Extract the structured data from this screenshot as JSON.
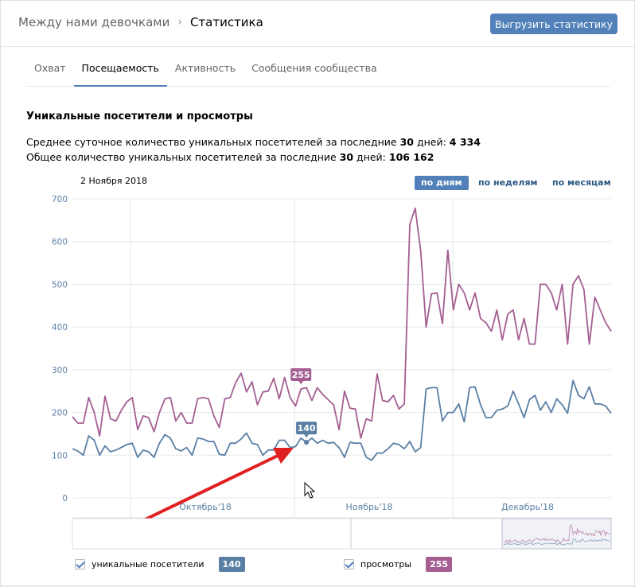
{
  "header": {
    "group_name": "Между нами девочками",
    "current_page": "Статистика",
    "export_label": "Выгрузить статистику"
  },
  "tabs": [
    {
      "label": "Охват"
    },
    {
      "label": "Посещаемость"
    },
    {
      "label": "Активность"
    },
    {
      "label": "Сообщения сообщества"
    }
  ],
  "section": {
    "title": "Уникальные посетители и просмотры",
    "line1_prefix": "Среднее суточное количество уникальных посетителей за последние ",
    "line1_days": "30",
    "line1_mid": " дней: ",
    "line1_value": "4 334",
    "line2_prefix": "Общее количество уникальных посетителей за последние ",
    "line2_days": "30",
    "line2_mid": " дней: ",
    "line2_value": "106 162"
  },
  "chart_controls": {
    "date_label": "2 Ноября 2018",
    "periods": [
      "по дням",
      "по неделям",
      "по месяцам"
    ],
    "active_period": "по дням"
  },
  "colors": {
    "visitors": "#5a7fa5",
    "views": "#a45e92",
    "accent": "#5181b8"
  },
  "chart_data": {
    "type": "line",
    "ylim": [
      0,
      700
    ],
    "yticks": [
      0,
      100,
      200,
      300,
      400,
      500,
      600,
      700
    ],
    "month_labels": [
      "Октябрь'18",
      "Ноябрь'18",
      "Декабрь'18"
    ],
    "grid": true,
    "series": [
      {
        "name": "уникальные посетители",
        "values": [
          115,
          110,
          100,
          145,
          135,
          100,
          122,
          108,
          112,
          118,
          125,
          128,
          95,
          112,
          108,
          95,
          128,
          148,
          140,
          115,
          110,
          118,
          100,
          140,
          138,
          132,
          132,
          102,
          100,
          128,
          128,
          138,
          152,
          128,
          125,
          100,
          112,
          112,
          135,
          135,
          118,
          120,
          140,
          130,
          140,
          128,
          135,
          128,
          130,
          118,
          95,
          130,
          128,
          128,
          95,
          88,
          105,
          105,
          115,
          128,
          125,
          115,
          132,
          108,
          118,
          255,
          258,
          258,
          180,
          200,
          200,
          220,
          178,
          258,
          260,
          218,
          188,
          188,
          205,
          208,
          215,
          250,
          220,
          188,
          230,
          240,
          205,
          225,
          200,
          232,
          218,
          198,
          275,
          240,
          232,
          260,
          220,
          220,
          215,
          198
        ],
        "tooltip_value": "140",
        "tooltip_index": 43
      },
      {
        "name": "просмотры",
        "values": [
          190,
          175,
          175,
          235,
          200,
          145,
          238,
          185,
          180,
          205,
          225,
          235,
          160,
          192,
          188,
          155,
          200,
          232,
          235,
          180,
          200,
          175,
          175,
          232,
          235,
          232,
          192,
          165,
          232,
          235,
          270,
          292,
          248,
          272,
          218,
          248,
          250,
          280,
          232,
          282,
          235,
          215,
          255,
          258,
          228,
          258,
          242,
          230,
          218,
          160,
          250,
          210,
          208,
          140,
          185,
          180,
          290,
          228,
          225,
          240,
          208,
          220,
          640,
          678,
          578,
          400,
          478,
          480,
          408,
          580,
          440,
          500,
          480,
          440,
          480,
          420,
          410,
          390,
          440,
          370,
          430,
          440,
          370,
          420,
          360,
          360,
          500,
          500,
          480,
          440,
          500,
          360,
          500,
          520,
          488,
          360,
          470,
          440,
          410,
          390
        ],
        "tooltip_value": "255",
        "tooltip_index": 42
      }
    ]
  },
  "legend": {
    "visitors_label": "уникальные посетители",
    "visitors_value": "140",
    "views_label": "просмотры",
    "views_value": "255"
  }
}
